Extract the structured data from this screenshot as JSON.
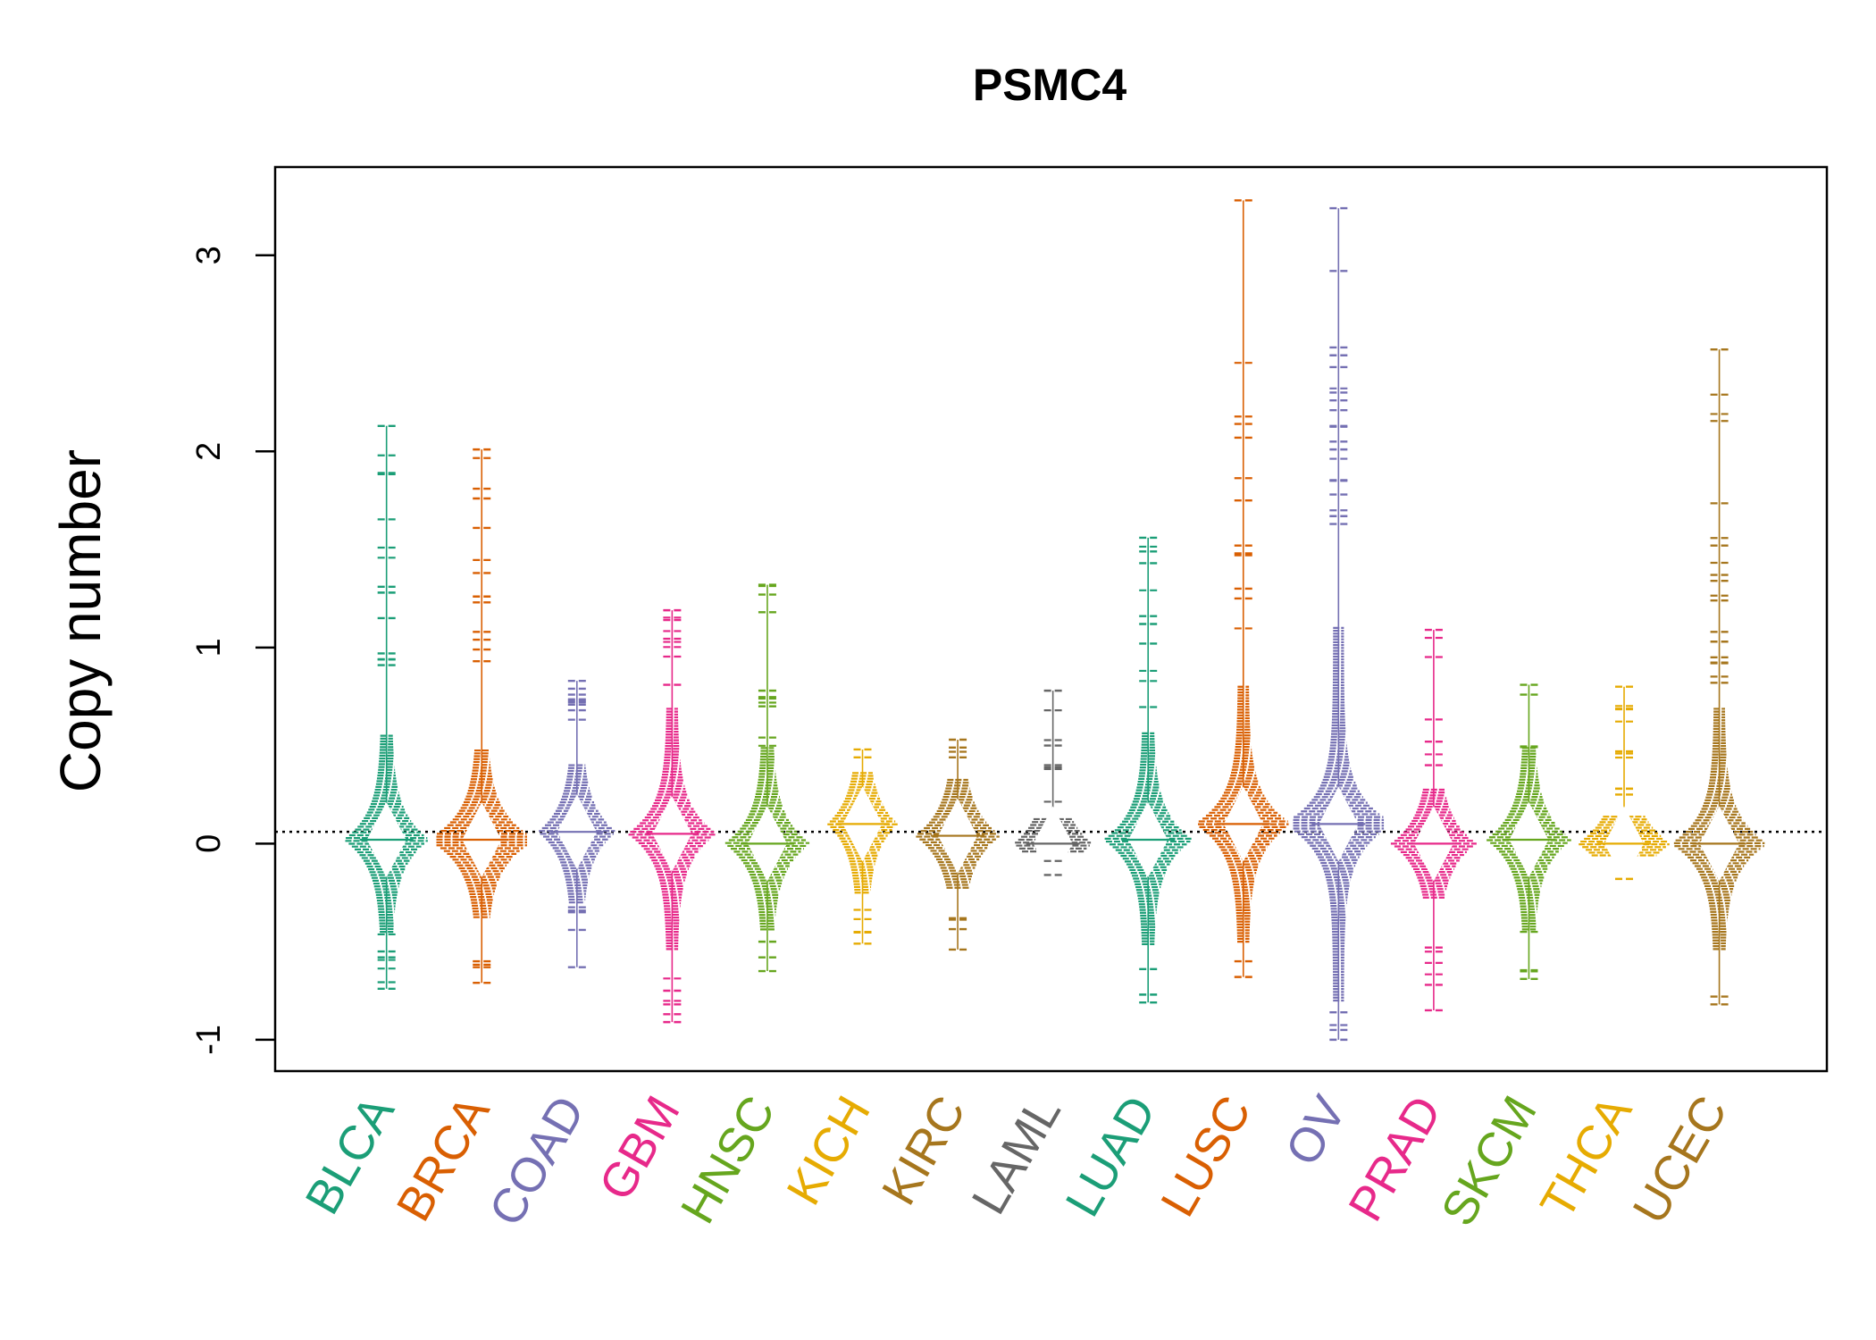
{
  "chart_data": {
    "type": "scatter",
    "title": "PSMC4",
    "ylabel": "Copy number",
    "xlabel": "",
    "ylim": [
      -1.16,
      3.45
    ],
    "yticks": [
      "-1",
      "0",
      "1",
      "2",
      "3"
    ],
    "reference_line_y": 0.06,
    "grid": false,
    "legend": "none",
    "series": [
      {
        "name": "BLCA",
        "color": "#1B9E77",
        "min": -0.74,
        "max": 2.13,
        "median": 0.02,
        "q1": -0.25,
        "q3": 0.35,
        "spread": 1.0,
        "outliers": [
          2.13,
          1.89,
          1.31,
          1.28,
          1.15,
          0.97,
          0.94,
          0.91,
          -0.55,
          -0.58,
          -0.74
        ]
      },
      {
        "name": "BRCA",
        "color": "#D95F02",
        "min": -0.71,
        "max": 2.01,
        "median": 0.02,
        "q1": -0.2,
        "q3": 0.3,
        "spread": 1.3,
        "outliers": [
          2.01,
          1.81,
          1.76,
          1.61,
          1.38,
          1.26,
          1.23,
          1.08,
          1.04,
          0.99,
          0.93,
          -0.6,
          -0.63,
          -0.71
        ]
      },
      {
        "name": "COAD",
        "color": "#7570B3",
        "min": -0.63,
        "max": 0.83,
        "median": 0.06,
        "q1": -0.15,
        "q3": 0.25,
        "spread": 0.9,
        "outliers": [
          0.83,
          0.79,
          0.76,
          0.72,
          0.68,
          -0.35,
          -0.44,
          -0.63
        ]
      },
      {
        "name": "GBM",
        "color": "#E7298A",
        "min": -0.91,
        "max": 1.19,
        "median": 0.05,
        "q1": -0.3,
        "q3": 0.45,
        "spread": 1.05,
        "outliers": [
          1.19,
          1.14,
          0.81,
          -0.75,
          -0.82,
          -0.87,
          -0.91
        ]
      },
      {
        "name": "HNSC",
        "color": "#66A61E",
        "min": -0.65,
        "max": 1.32,
        "median": 0.0,
        "q1": -0.25,
        "q3": 0.3,
        "spread": 1.0,
        "outliers": [
          1.32,
          1.27,
          1.18,
          0.78,
          0.74,
          0.7,
          -0.5,
          -0.58,
          -0.65
        ]
      },
      {
        "name": "KICH",
        "color": "#E6AB02",
        "min": -0.51,
        "max": 0.48,
        "median": 0.1,
        "q1": -0.1,
        "q3": 0.3,
        "spread": 0.8,
        "outliers": [
          0.48,
          0.44,
          -0.45,
          -0.51
        ]
      },
      {
        "name": "KIRC",
        "color": "#A6761D",
        "min": -0.54,
        "max": 0.53,
        "median": 0.04,
        "q1": -0.1,
        "q3": 0.2,
        "spread": 1.0,
        "outliers": [
          0.53,
          0.49,
          0.44,
          -0.54
        ]
      },
      {
        "name": "LAML",
        "color": "#666666",
        "min": -0.16,
        "max": 0.78,
        "median": 0.0,
        "q1": -0.05,
        "q3": 0.05,
        "spread": 0.9,
        "outliers": [
          0.78,
          0.5,
          0.4,
          -0.16
        ]
      },
      {
        "name": "LUAD",
        "color": "#1B9E77",
        "min": -0.81,
        "max": 1.56,
        "median": 0.02,
        "q1": -0.3,
        "q3": 0.35,
        "spread": 1.05,
        "outliers": [
          1.56,
          1.49,
          1.43,
          1.16,
          1.12,
          1.02,
          -0.64,
          -0.77,
          -0.81
        ]
      },
      {
        "name": "LUSC",
        "color": "#D95F02",
        "min": -0.68,
        "max": 3.28,
        "median": 0.1,
        "q1": -0.25,
        "q3": 0.55,
        "spread": 1.15,
        "outliers": [
          3.28,
          2.14,
          2.07,
          1.75,
          1.52,
          1.48,
          1.3,
          1.25,
          -0.6,
          -0.68
        ]
      },
      {
        "name": "OV",
        "color": "#7570B3",
        "min": -1.0,
        "max": 3.24,
        "median": 0.1,
        "q1": -0.45,
        "q3": 0.75,
        "spread": 1.35,
        "outliers": [
          3.24,
          2.92,
          2.53,
          2.49,
          2.43,
          2.3,
          2.26,
          2.21,
          2.13,
          2.05,
          2.01,
          1.85,
          1.78,
          1.67,
          1.63,
          -0.86,
          -0.95,
          -1.0
        ]
      },
      {
        "name": "PRAD",
        "color": "#E7298A",
        "min": -0.85,
        "max": 1.09,
        "median": 0.0,
        "q1": -0.15,
        "q3": 0.15,
        "spread": 1.0,
        "outliers": [
          1.09,
          0.52,
          0.4,
          -0.53,
          -0.72,
          -0.85
        ]
      },
      {
        "name": "SKCM",
        "color": "#66A61E",
        "min": -0.69,
        "max": 0.81,
        "median": 0.02,
        "q1": -0.25,
        "q3": 0.3,
        "spread": 1.0,
        "outliers": [
          0.81,
          0.76,
          -0.69
        ]
      },
      {
        "name": "THCA",
        "color": "#E6AB02",
        "min": -0.18,
        "max": 0.8,
        "median": 0.0,
        "q1": -0.05,
        "q3": 0.06,
        "spread": 1.1,
        "outliers": [
          0.8,
          0.46,
          0.28,
          0.25,
          -0.18
        ]
      },
      {
        "name": "UCEC",
        "color": "#A6761D",
        "min": -0.82,
        "max": 2.52,
        "median": 0.0,
        "q1": -0.3,
        "q3": 0.45,
        "spread": 1.15,
        "outliers": [
          2.52,
          1.52,
          1.37,
          1.34,
          1.24,
          1.08,
          1.03,
          0.95,
          0.92,
          0.82,
          -0.78,
          -0.82
        ]
      }
    ]
  }
}
